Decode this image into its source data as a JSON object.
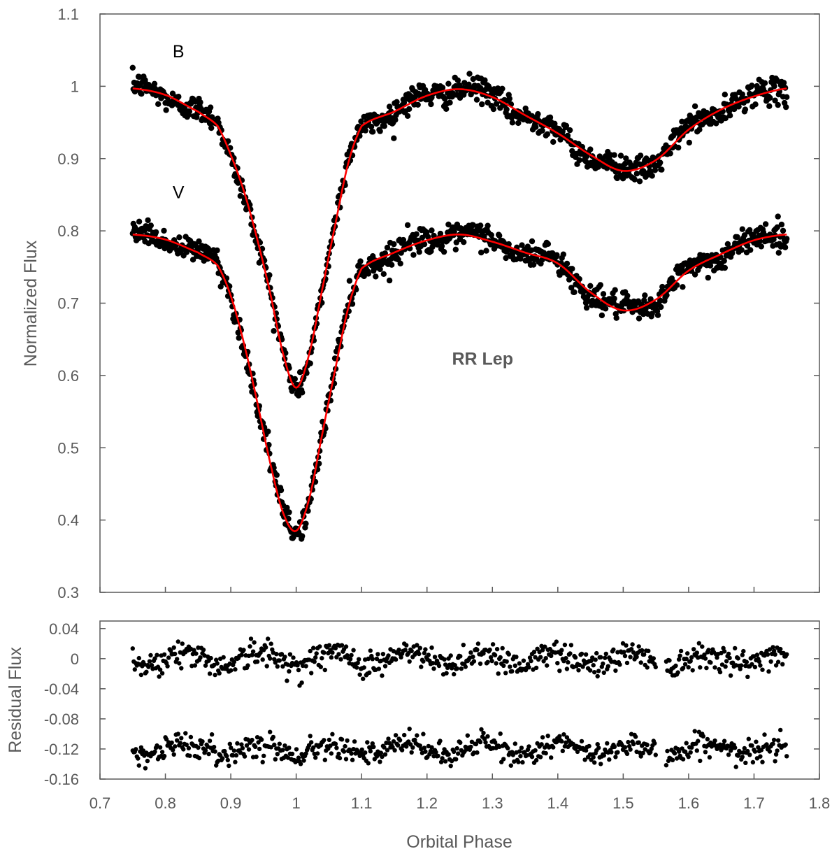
{
  "chart_data": [
    {
      "type": "scatter",
      "panel": "main",
      "title": "",
      "xlabel": "",
      "ylabel": "Normalized Flux",
      "xlim": [
        0.7,
        1.8
      ],
      "ylim": [
        0.3,
        1.1
      ],
      "x_ticks": [
        "0.7",
        "0.8",
        "0.9",
        "1",
        "1.1",
        "1.2",
        "1.3",
        "1.4",
        "1.5",
        "1.6",
        "1.7",
        "1.8"
      ],
      "y_ticks": [
        "0.3",
        "0.4",
        "0.5",
        "0.6",
        "0.7",
        "0.8",
        "0.9",
        "1",
        "1.1"
      ],
      "annotations": [
        {
          "text": "B",
          "x": 0.82,
          "y": 1.04
        },
        {
          "text": "V",
          "x": 0.82,
          "y": 0.845
        },
        {
          "text": "RR Lep",
          "x": 1.285,
          "y": 0.615
        }
      ],
      "series": [
        {
          "name": "B",
          "kind": "observations",
          "color": "#000000",
          "x_range": [
            0.75,
            1.75
          ],
          "model_phase": [
            0.75,
            0.8,
            0.85,
            0.88,
            0.9,
            0.92,
            0.94,
            0.96,
            0.98,
            1.0,
            1.02,
            1.04,
            1.06,
            1.08,
            1.1,
            1.15,
            1.2,
            1.25,
            1.3,
            1.35,
            1.4,
            1.45,
            1.5,
            1.55,
            1.6,
            1.65,
            1.7,
            1.75
          ],
          "model_flux": [
            0.997,
            0.988,
            0.965,
            0.945,
            0.905,
            0.855,
            0.79,
            0.715,
            0.63,
            0.583,
            0.63,
            0.72,
            0.81,
            0.895,
            0.945,
            0.965,
            0.987,
            0.996,
            0.985,
            0.96,
            0.935,
            0.905,
            0.883,
            0.898,
            0.94,
            0.968,
            0.986,
            0.997
          ]
        },
        {
          "name": "V",
          "kind": "observations",
          "color": "#000000",
          "x_range": [
            0.75,
            1.75
          ],
          "model_phase": [
            0.75,
            0.8,
            0.85,
            0.88,
            0.9,
            0.92,
            0.94,
            0.96,
            0.98,
            1.0,
            1.02,
            1.04,
            1.06,
            1.08,
            1.1,
            1.15,
            1.2,
            1.25,
            1.3,
            1.35,
            1.4,
            1.45,
            1.5,
            1.55,
            1.6,
            1.65,
            1.7,
            1.75
          ],
          "model_flux": [
            0.795,
            0.788,
            0.77,
            0.752,
            0.71,
            0.645,
            0.565,
            0.48,
            0.41,
            0.385,
            0.43,
            0.52,
            0.61,
            0.695,
            0.748,
            0.77,
            0.787,
            0.795,
            0.785,
            0.77,
            0.755,
            0.715,
            0.69,
            0.705,
            0.745,
            0.768,
            0.787,
            0.795
          ]
        },
        {
          "name": "",
          "kind": "model",
          "color": "#ff0000",
          "follows": "B"
        },
        {
          "name": "",
          "kind": "model",
          "color": "#ff0000",
          "follows": "V"
        }
      ]
    },
    {
      "type": "scatter",
      "panel": "residuals",
      "xlabel": "Orbital Phase",
      "ylabel": "Residual Flux",
      "xlim": [
        0.7,
        1.8
      ],
      "ylim": [
        -0.16,
        0.05
      ],
      "x_ticks": [
        "0.7",
        "0.8",
        "0.9",
        "1",
        "1.1",
        "1.2",
        "1.3",
        "1.4",
        "1.5",
        "1.6",
        "1.7",
        "1.8"
      ],
      "y_ticks": [
        "0.04",
        "0",
        "-0.04",
        "-0.08",
        "-0.12",
        "-0.16"
      ],
      "series": [
        {
          "name": "B",
          "color": "#000000",
          "center": 0.0,
          "scatter": 0.015,
          "x_range": [
            0.75,
            1.75
          ],
          "gap": [
            1.55,
            1.565
          ]
        },
        {
          "name": "V",
          "color": "#000000",
          "center": -0.12,
          "scatter": 0.013,
          "x_range": [
            0.75,
            1.75
          ],
          "gap": [
            1.55,
            1.565
          ]
        }
      ]
    }
  ]
}
